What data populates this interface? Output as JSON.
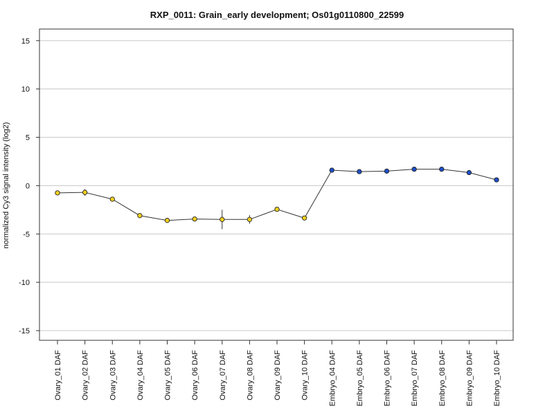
{
  "chart_data": {
    "type": "line",
    "title": "RXP_0011: Grain_early development; Os01g0110800_22599",
    "xlabel": "",
    "ylabel": "normalized Cy3 signal intensity (log2)",
    "ylim": [
      -16,
      16.2
    ],
    "yticks": [
      15,
      10,
      5,
      0,
      -5,
      -10,
      -15
    ],
    "grid": true,
    "categories": [
      "Ovary_01 DAF",
      "Ovary_02 DAF",
      "Ovary_03 DAF",
      "Ovary_04 DAF",
      "Ovary_05 DAF",
      "Ovary_06 DAF",
      "Ovary_07 DAF",
      "Ovary_08 DAF",
      "Ovary_09 DAF",
      "Ovary_10 DAF",
      "Embryo_04 DAF",
      "Embryo_05 DAF",
      "Embryo_06 DAF",
      "Embryo_07 DAF",
      "Embryo_08 DAF",
      "Embryo_09 DAF",
      "Embryo_10 DAF"
    ],
    "values": [
      -0.75,
      -0.7,
      -1.4,
      -3.1,
      -3.6,
      -3.45,
      -3.5,
      -3.5,
      -2.45,
      -3.35,
      1.6,
      1.45,
      1.5,
      1.7,
      1.7,
      1.35,
      0.6
    ],
    "errors": [
      0.15,
      0.35,
      0.15,
      0.25,
      0.1,
      0.2,
      1.0,
      0.45,
      0.15,
      0.15,
      0.1,
      0.15,
      0.2,
      0.1,
      0.1,
      0.15,
      0.1
    ],
    "point_colors": [
      "#f0d020",
      "#f0d020",
      "#f0d020",
      "#f0d020",
      "#f0d020",
      "#f0d020",
      "#f0d020",
      "#f0d020",
      "#f0d020",
      "#f0d020",
      "#1f4fc8",
      "#1f4fc8",
      "#1f4fc8",
      "#1f4fc8",
      "#1f4fc8",
      "#1f4fc8",
      "#1f4fc8"
    ],
    "line_color": "#333333",
    "grid_color": "#c8c8c8"
  }
}
